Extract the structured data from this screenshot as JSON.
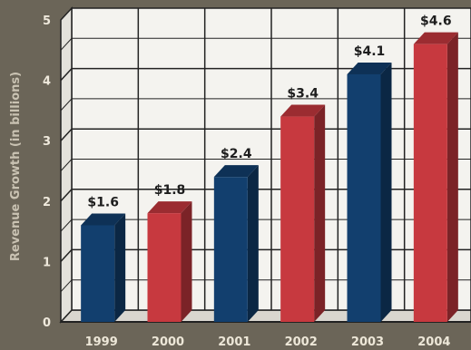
{
  "chart_data": {
    "type": "bar",
    "title": "",
    "xlabel": "",
    "ylabel": "Revenue Growth (in billions)",
    "ylim": [
      0,
      5
    ],
    "yticks": [
      "0",
      "1",
      "2",
      "3",
      "4",
      "5"
    ],
    "categories": [
      "1999",
      "2000",
      "2001",
      "2002",
      "2003",
      "2004"
    ],
    "values": [
      1.6,
      1.8,
      2.4,
      3.4,
      4.1,
      4.6
    ],
    "data_labels": [
      "$1.6",
      "$1.8",
      "$2.4",
      "$3.4",
      "$4.1",
      "$4.6"
    ],
    "bar_colors": [
      "#123f6e",
      "#c7393f",
      "#123f6e",
      "#c7393f",
      "#123f6e",
      "#c7393f"
    ],
    "grid": true,
    "legend": "none"
  }
}
